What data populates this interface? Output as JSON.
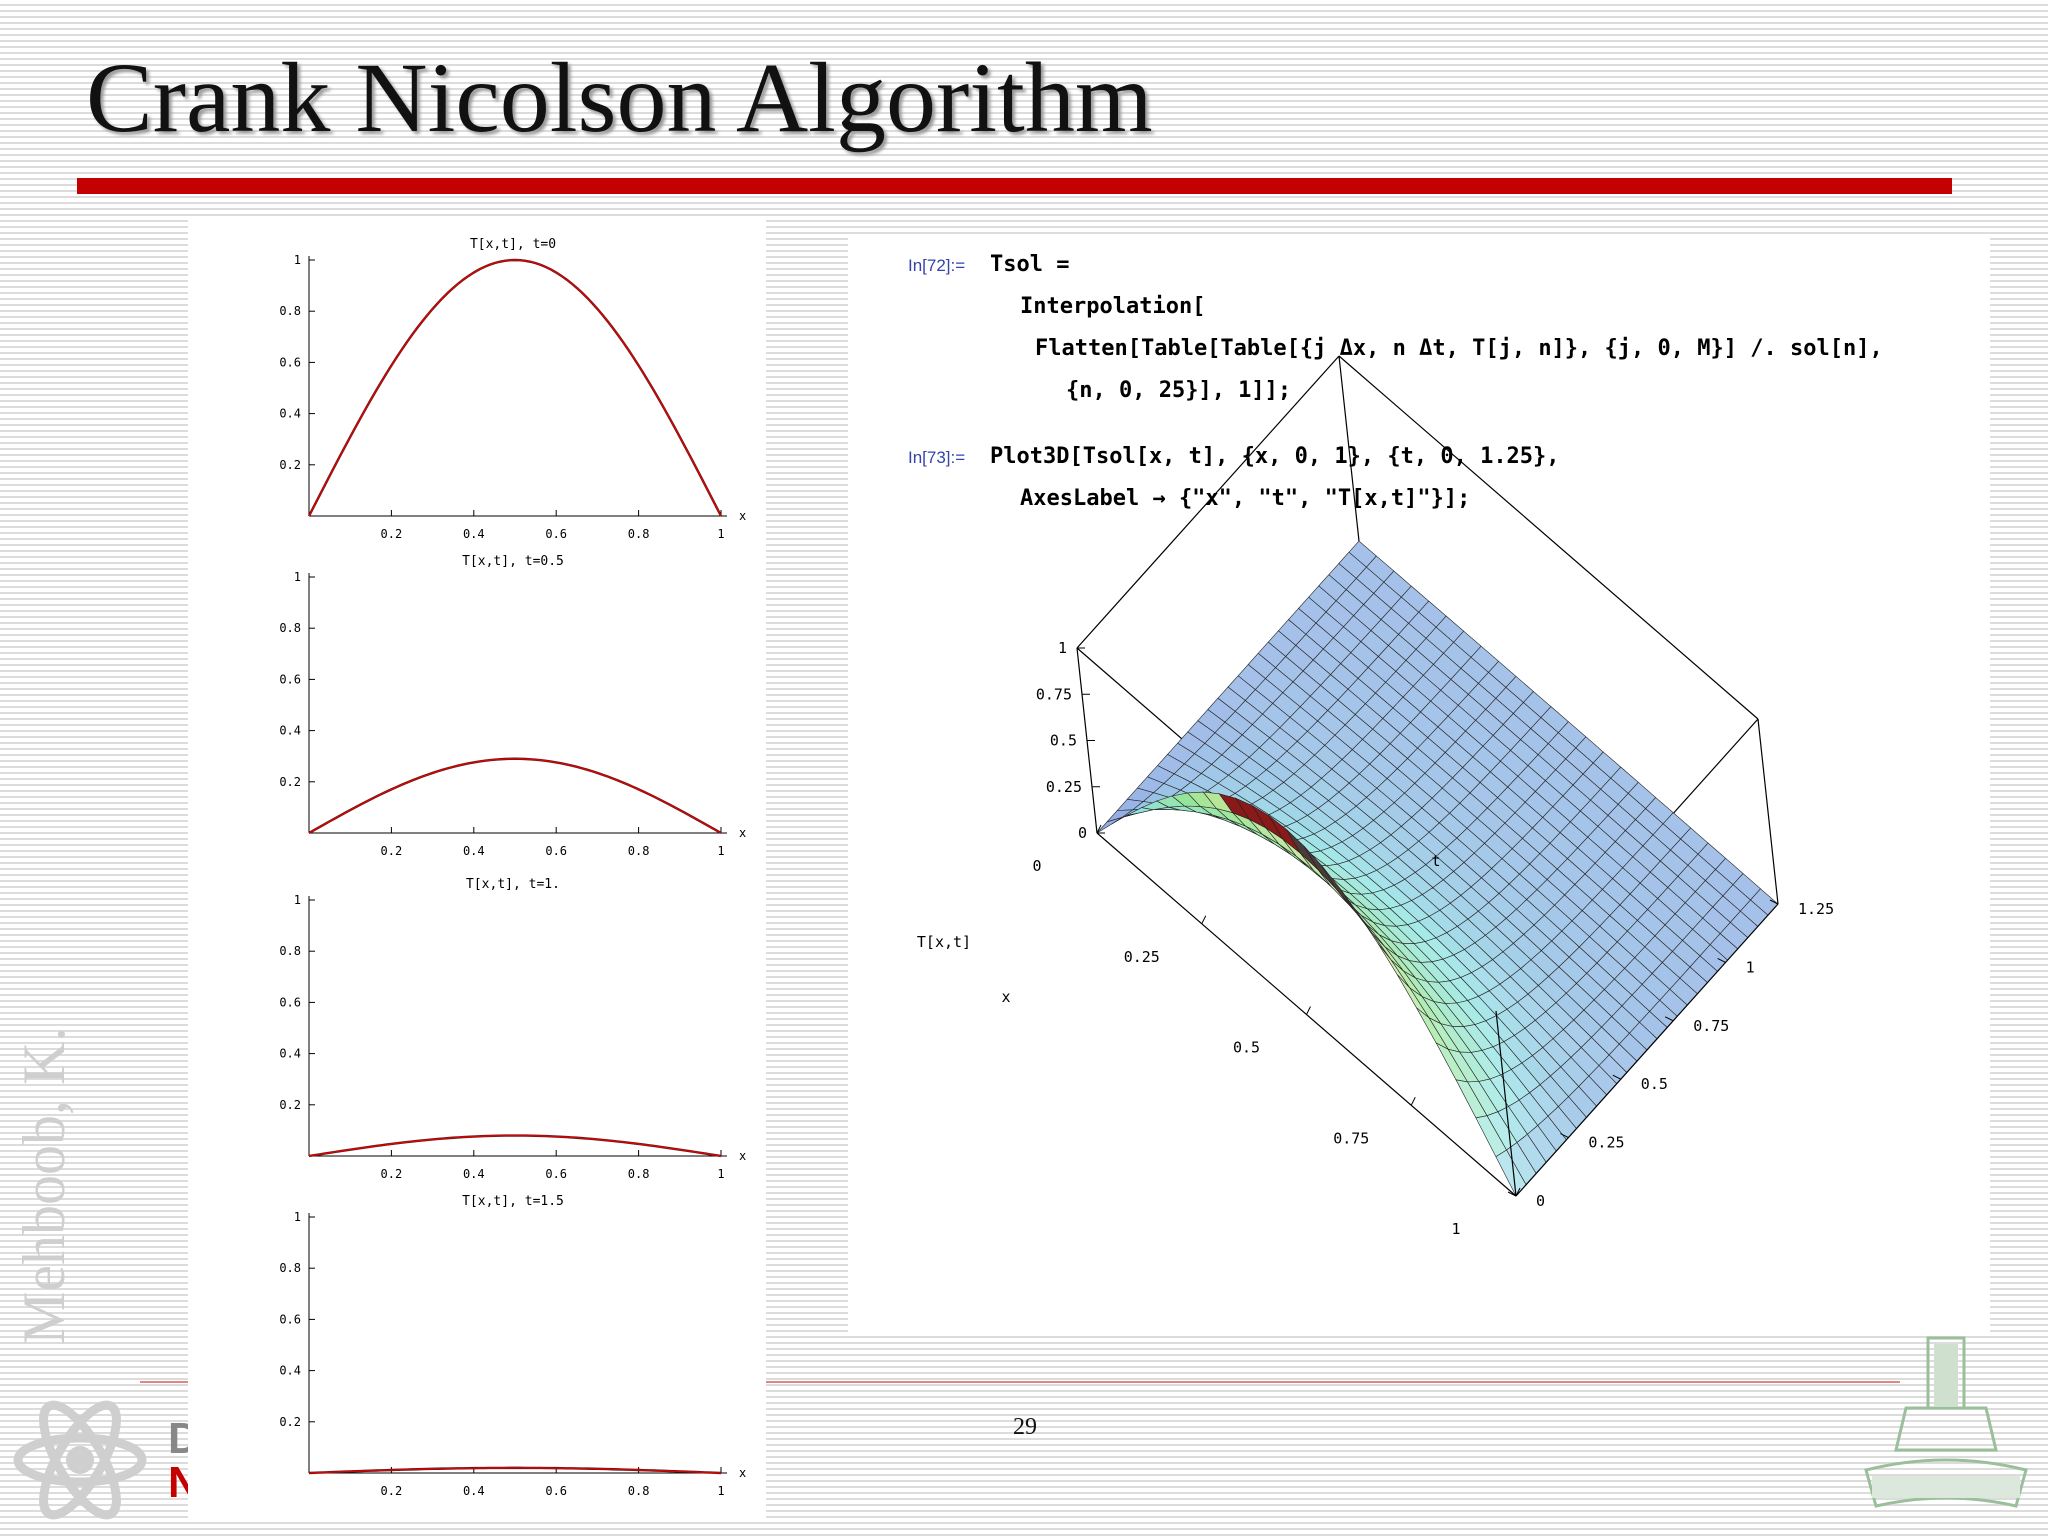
{
  "slide": {
    "title": "Crank Nicolson Algorithm",
    "page_number": "29",
    "watermark": "Mehboob, K.",
    "footer_letters": [
      "D",
      "N"
    ]
  },
  "colors": {
    "title_rule": "#c40000",
    "curve": "#dd0000",
    "in_label": "#3344aa"
  },
  "code": {
    "cells": [
      {
        "label": "In[72]:=",
        "lines": [
          "Tsol =",
          "Interpolation[",
          "Flatten[Table[Table[{j Δx, n Δt, T[j, n]}, {j, 0, M}] /. sol[n],",
          "{n, 0, 25}], 1]];"
        ]
      },
      {
        "label": "In[73]:=",
        "lines": [
          "Plot3D[Tsol[x, t], {x, 0, 1}, {t, 0, 1.25},",
          "AxesLabel → {\"x\", \"t\", \"T[x,t]\"}];"
        ]
      }
    ]
  },
  "chart_data": [
    {
      "type": "line",
      "title": "T[x,t], t=0",
      "xlabel": "x",
      "x_ticks": [
        "0.2",
        "0.4",
        "0.6",
        "0.8",
        "1"
      ],
      "y_ticks": [
        "0.2",
        "0.4",
        "0.6",
        "0.8",
        "1"
      ],
      "xlim": [
        0,
        1
      ],
      "ylim": [
        0,
        1
      ],
      "peak": 1.0
    },
    {
      "type": "line",
      "title": "T[x,t], t=0.5",
      "xlabel": "x",
      "x_ticks": [
        "0.2",
        "0.4",
        "0.6",
        "0.8",
        "1"
      ],
      "y_ticks": [
        "0.2",
        "0.4",
        "0.6",
        "0.8",
        "1"
      ],
      "xlim": [
        0,
        1
      ],
      "ylim": [
        0,
        1
      ],
      "peak": 0.29
    },
    {
      "type": "line",
      "title": "T[x,t], t=1.",
      "xlabel": "x",
      "x_ticks": [
        "0.2",
        "0.4",
        "0.6",
        "0.8",
        "1"
      ],
      "y_ticks": [
        "0.2",
        "0.4",
        "0.6",
        "0.8",
        "1"
      ],
      "xlim": [
        0,
        1
      ],
      "ylim": [
        0,
        1
      ],
      "peak": 0.08
    },
    {
      "type": "line",
      "title": "T[x,t], t=1.5",
      "xlabel": "x",
      "x_ticks": [
        "0.2",
        "0.4",
        "0.6",
        "0.8",
        "1"
      ],
      "y_ticks": [
        "0.2",
        "0.4",
        "0.6",
        "0.8",
        "1"
      ],
      "xlim": [
        0,
        1
      ],
      "ylim": [
        0,
        1
      ],
      "peak": 0.02
    },
    {
      "type": "surface",
      "xlabel": "x",
      "ylabel": "t",
      "zlabel": "T[x,t]",
      "x_ticks": [
        "0",
        "0.25",
        "0.5",
        "0.75",
        "1"
      ],
      "t_ticks": [
        "0",
        "0.25",
        "0.5",
        "0.75",
        "1",
        "1.25"
      ],
      "z_ticks": [
        "0",
        "0.25",
        "0.5",
        "0.75",
        "1"
      ],
      "xlim": [
        0,
        1
      ],
      "tlim": [
        0,
        1.25
      ],
      "zlim": [
        0,
        1
      ]
    }
  ]
}
